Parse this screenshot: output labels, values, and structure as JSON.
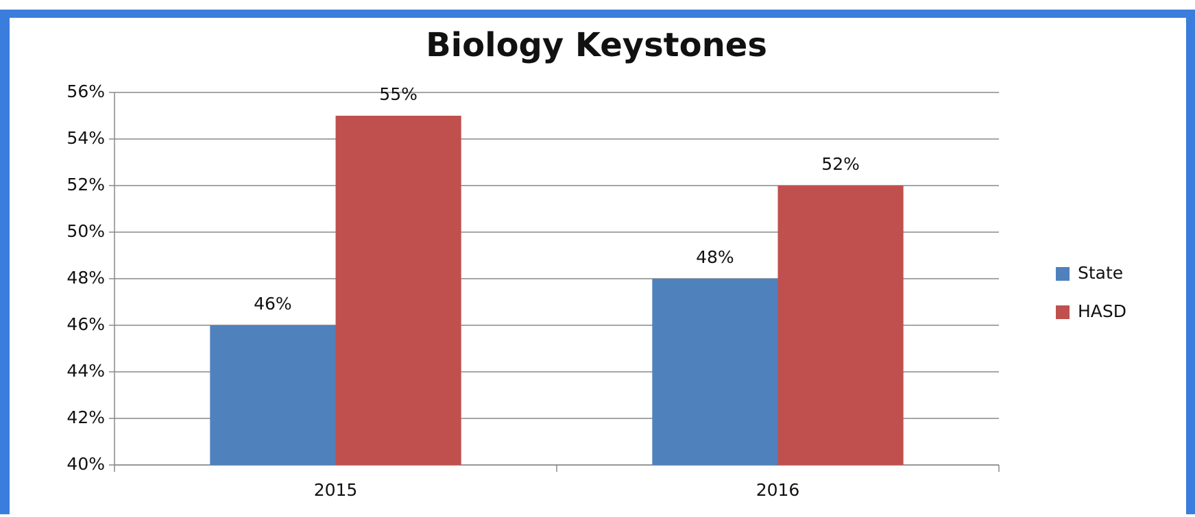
{
  "chart_data": {
    "type": "bar",
    "title": "Biology Keystones",
    "categories": [
      "2015",
      "2016"
    ],
    "series": [
      {
        "name": "State",
        "color": "#4f81bd",
        "values": [
          46,
          48
        ],
        "value_labels": [
          "46%",
          "48%"
        ]
      },
      {
        "name": "HASD",
        "color": "#c0504d",
        "values": [
          55,
          52
        ],
        "value_labels": [
          "55%",
          "52%"
        ]
      }
    ],
    "ylim": [
      40,
      56
    ],
    "yticks": [
      {
        "value": 40,
        "label": "40%"
      },
      {
        "value": 42,
        "label": "42%"
      },
      {
        "value": 44,
        "label": "44%"
      },
      {
        "value": 46,
        "label": "46%"
      },
      {
        "value": 48,
        "label": "48%"
      },
      {
        "value": 50,
        "label": "50%"
      },
      {
        "value": 52,
        "label": "52%"
      },
      {
        "value": 54,
        "label": "54%"
      },
      {
        "value": 56,
        "label": "56%"
      }
    ],
    "grid": true,
    "legend": "right"
  }
}
